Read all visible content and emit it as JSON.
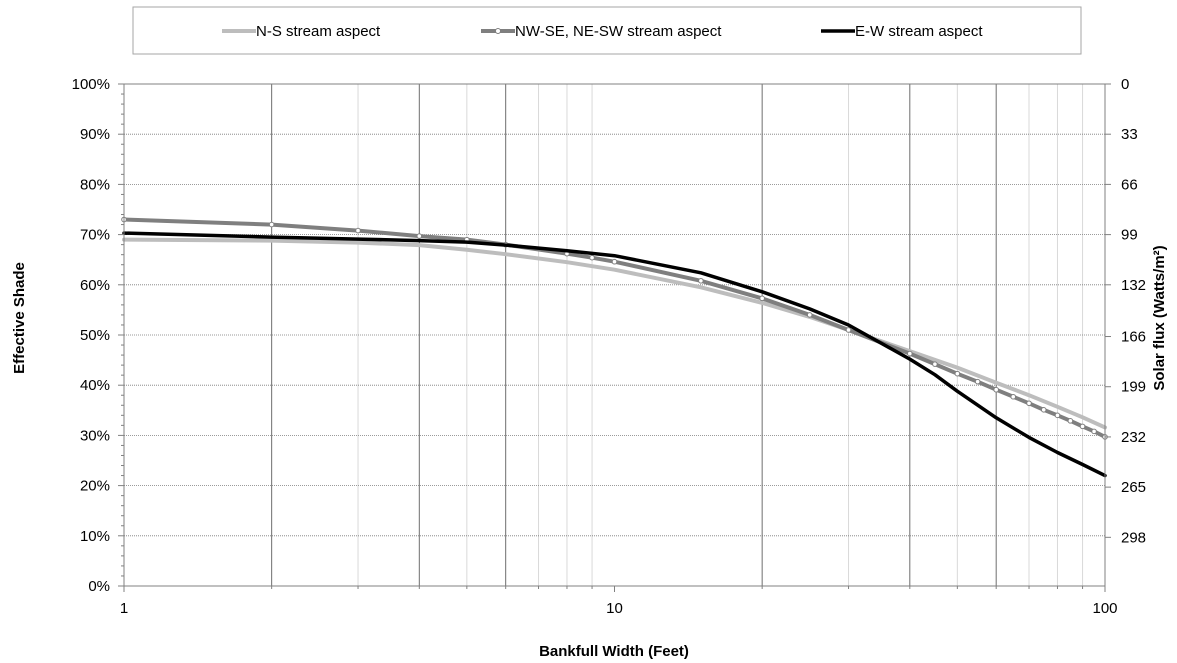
{
  "chart_data": {
    "type": "line",
    "title": "",
    "xlabel": "Bankfull Width (Feet)",
    "ylabel": "Effective Shade",
    "y2label": "Solar flux (Watts/m²)",
    "xscale": "log",
    "xlim": [
      1,
      100
    ],
    "ylim": [
      0,
      100
    ],
    "grid": true,
    "legend_position": "top",
    "x_ticks": [
      "1",
      "10",
      "100"
    ],
    "y_ticks": [
      "0%",
      "10%",
      "20%",
      "30%",
      "40%",
      "50%",
      "60%",
      "70%",
      "80%",
      "90%",
      "100%"
    ],
    "y2_ticks": [
      "298",
      "265",
      "232",
      "199",
      "166",
      "132",
      "99",
      "66",
      "33",
      "0"
    ],
    "series": [
      {
        "name": "N-S stream aspect",
        "color": "#bdbdbd",
        "marker": "none",
        "x": [
          1,
          2,
          3,
          4,
          5,
          6,
          8,
          10,
          15,
          20,
          25,
          30,
          40,
          50,
          60,
          70,
          80,
          90,
          100
        ],
        "y": [
          69,
          68.8,
          68.4,
          67.9,
          67,
          66.1,
          64.5,
          63,
          59.5,
          56.4,
          53.6,
          51,
          46.8,
          43.5,
          40.5,
          38,
          35.7,
          33.6,
          31.6
        ]
      },
      {
        "name": "NW-SE, NE-SW stream aspect",
        "color": "#7f7f7f",
        "marker": "circle",
        "x": [
          1,
          2,
          3,
          4,
          5,
          6,
          8,
          9,
          10,
          15,
          20,
          25,
          30,
          40,
          45,
          50,
          55,
          60,
          65,
          70,
          75,
          80,
          85,
          90,
          95,
          100
        ],
        "y": [
          73,
          72,
          70.8,
          69.7,
          69,
          68,
          66.2,
          65.4,
          64.6,
          60.8,
          57.3,
          54,
          51,
          46.3,
          44.2,
          42.3,
          40.7,
          39.1,
          37.7,
          36.4,
          35.1,
          34,
          32.9,
          31.8,
          30.8,
          29.7
        ]
      },
      {
        "name": "E-W stream aspect",
        "color": "#000000",
        "marker": "none",
        "x": [
          1,
          2,
          3,
          4,
          5,
          6,
          8,
          10,
          15,
          20,
          25,
          30,
          40,
          45,
          50,
          60,
          70,
          80,
          90,
          100
        ],
        "y": [
          70.3,
          69.5,
          69.1,
          68.8,
          68.5,
          67.9,
          66.8,
          65.8,
          62.4,
          58.6,
          55.2,
          52,
          45.2,
          42.1,
          38.8,
          33.5,
          29.6,
          26.6,
          24.2,
          22
        ]
      }
    ]
  }
}
